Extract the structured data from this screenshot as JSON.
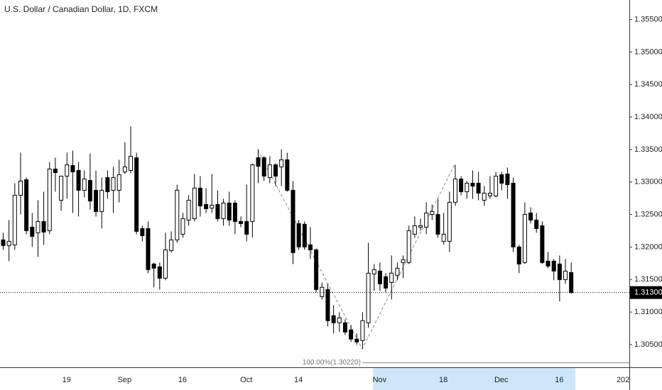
{
  "chart_data": {
    "type": "candlestick",
    "title": "U.S. Dollar / Canadian Dollar, 1D, FXCM",
    "categories": [
      null,
      null,
      null,
      null,
      null,
      null,
      null,
      null,
      null,
      null,
      null,
      "19",
      null,
      null,
      null,
      null,
      null,
      null,
      null,
      null,
      null,
      "Sep",
      null,
      null,
      null,
      null,
      null,
      null,
      null,
      null,
      null,
      "16",
      null,
      null,
      null,
      null,
      null,
      null,
      null,
      null,
      null,
      null,
      "Oct",
      null,
      null,
      null,
      null,
      null,
      null,
      null,
      null,
      "14",
      null,
      null,
      null,
      null,
      null,
      null,
      null,
      null,
      null,
      null,
      null,
      null,
      null,
      "Nov",
      null,
      null,
      null,
      null,
      null,
      null,
      null,
      null,
      null,
      null,
      "18",
      null,
      null,
      null,
      null,
      null,
      null,
      null,
      null,
      null,
      "Dec",
      null,
      null,
      null,
      null,
      null,
      null,
      null,
      null,
      null,
      "16",
      null,
      null,
      null,
      null,
      null,
      null,
      null,
      null,
      null,
      null,
      "202"
    ],
    "open": [
      1.3211,
      1.32023,
      1.32034,
      1.32797,
      1.33036,
      1.32306,
      1.32219,
      1.32393,
      1.32252,
      1.332,
      1.3272,
      1.33091,
      1.33254,
      1.33178,
      1.32873,
      1.33025,
      1.32873,
      1.32546,
      1.33069,
      1.32873,
      1.32873,
      1.33156,
      1.33178,
      1.33374,
      1.32284,
      1.32284,
      1.31739,
      1.31696,
      1.31521,
      1.31946,
      1.3211,
      1.32197,
      1.32415,
      1.32437,
      1.32906,
      1.32655,
      1.326,
      1.32655,
      1.32437,
      1.32677,
      1.32677,
      1.32393,
      1.32393,
      1.32393,
      1.33374,
      1.33374,
      1.33069,
      1.33265,
      1.33233,
      1.33342,
      1.32873,
      1.32361,
      1.3235,
      1.32034,
      1.31957,
      1.31238,
      1.31347,
      1.30944,
      1.30835,
      1.30835,
      1.30726,
      1.30584,
      1.30562,
      1.30835,
      1.31587,
      1.3163,
      1.31543,
      1.31456,
      1.31565,
      1.31761,
      1.31761,
      1.32197,
      1.32306,
      1.32306,
      1.32502,
      1.32502,
      1.32088,
      1.32088,
      1.32688,
      1.33047,
      1.32851,
      1.32982,
      1.32982,
      1.3272,
      1.32786,
      1.32786,
      1.33113,
      1.33124,
      1.32982,
      1.32001,
      1.31761,
      1.32524,
      1.32415,
      1.32328,
      1.31783,
      1.31783,
      1.31739,
      1.31499,
      1.31608,
      null,
      null,
      null,
      null,
      null,
      null,
      null,
      null,
      null
    ],
    "high": [
      1.32219,
      1.32415,
      1.32982,
      1.33451,
      1.33069,
      1.32524,
      1.3272,
      1.32851,
      1.33309,
      1.33374,
      1.33091,
      1.33451,
      1.33483,
      1.33309,
      1.33178,
      1.3344,
      1.33178,
      1.33069,
      1.33178,
      1.33233,
      1.33342,
      1.33614,
      1.33854,
      1.33451,
      1.32328,
      1.32393,
      1.31761,
      1.31761,
      1.32219,
      1.32241,
      1.3296,
      1.32524,
      1.32797,
      1.33124,
      1.33091,
      1.32906,
      1.33124,
      1.32873,
      1.32742,
      1.32851,
      1.3272,
      1.3247,
      1.3296,
      1.33287,
      1.33505,
      1.33396,
      1.33396,
      1.33287,
      1.33505,
      1.33451,
      1.33015,
      1.32415,
      1.32393,
      1.32306,
      1.31979,
      1.31456,
      1.31434,
      1.31107,
      1.30998,
      1.30889,
      1.30802,
      1.30671,
      1.30998,
      1.32066,
      1.31739,
      1.31761,
      1.31598,
      1.3187,
      1.31761,
      1.3187,
      1.32328,
      1.3247,
      1.32437,
      1.32688,
      1.32655,
      1.32742,
      1.32524,
      1.32851,
      1.33265,
      1.33091,
      1.33015,
      1.33178,
      1.33156,
      1.32938,
      1.33091,
      1.33156,
      1.33156,
      1.33222,
      1.33069,
      1.32034,
      1.32688,
      1.32611,
      1.32524,
      1.32393,
      1.31925,
      1.31816,
      1.3187,
      1.31816,
      1.31761,
      null,
      null,
      null,
      null,
      null,
      null,
      null,
      null,
      null
    ],
    "low": [
      1.31957,
      1.31783,
      1.31957,
      1.32502,
      1.32197,
      1.32001,
      1.31848,
      1.32034,
      1.32197,
      1.32851,
      1.32557,
      1.32742,
      1.32524,
      1.3247,
      1.32764,
      1.32579,
      1.3247,
      1.32284,
      1.32742,
      1.32524,
      1.32688,
      1.33124,
      1.33134,
      1.32197,
      1.32088,
      1.31598,
      1.3138,
      1.31347,
      1.31489,
      1.31914,
      1.32066,
      1.32143,
      1.32328,
      1.32393,
      1.3247,
      1.32524,
      1.32524,
      1.32393,
      1.32328,
      1.32328,
      1.32197,
      1.32306,
      1.32088,
      1.32143,
      1.32982,
      1.33015,
      1.32982,
      1.32938,
      1.32938,
      1.32851,
      1.31739,
      1.31957,
      1.31957,
      1.31816,
      1.31303,
      1.31194,
      1.3078,
      1.30671,
      1.30693,
      1.30649,
      1.3054,
      1.30497,
      1.30431,
      1.30758,
      1.31325,
      1.31325,
      1.31303,
      1.31194,
      1.31489,
      1.31521,
      1.31739,
      1.32143,
      1.32252,
      1.32197,
      1.32415,
      1.32143,
      1.32034,
      1.31925,
      1.32633,
      1.32797,
      1.32742,
      1.32742,
      1.3272,
      1.32633,
      1.32742,
      1.32764,
      1.32873,
      1.32742,
      1.31925,
      1.31598,
      1.31739,
      1.32361,
      1.32219,
      1.31739,
      1.31674,
      1.31489,
      1.31162,
      1.31434,
      1.31281,
      null,
      null,
      null,
      null,
      null,
      null,
      null,
      null,
      null
    ],
    "close": [
      1.32023,
      1.32088,
      1.32797,
      1.33015,
      1.32252,
      1.32164,
      1.32393,
      1.3223,
      1.332,
      1.33145,
      1.33091,
      1.33265,
      1.33156,
      1.32873,
      1.33047,
      1.32709,
      1.32546,
      1.32873,
      1.32851,
      1.33069,
      1.33113,
      1.33233,
      1.33396,
      1.32241,
      1.32175,
      1.31652,
      1.31674,
      1.31521,
      1.31957,
      1.3211,
      1.32873,
      1.32437,
      1.3272,
      1.32906,
      1.32633,
      1.32589,
      1.32644,
      1.32437,
      1.32677,
      1.32415,
      1.32393,
      1.32361,
      1.32197,
      1.33265,
      1.33243,
      1.33091,
      1.33265,
      1.33091,
      1.33342,
      1.32873,
      1.31914,
      1.32001,
      1.32001,
      1.31957,
      1.31347,
      1.3138,
      1.30867,
      1.30835,
      1.30911,
      1.30693,
      1.30584,
      1.3054,
      1.30867,
      1.31598,
      1.31652,
      1.31434,
      1.31369,
      1.31598,
      1.31674,
      1.31805,
      1.32252,
      1.32328,
      1.32328,
      1.32524,
      1.32546,
      1.32197,
      1.32197,
      1.32688,
      1.33047,
      1.32851,
      1.32982,
      1.32938,
      1.32829,
      1.32829,
      1.32829,
      1.33091,
      1.32982,
      1.3296,
      1.32001,
      1.31739,
      1.32502,
      1.32415,
      1.32284,
      1.31761,
      1.31707,
      1.3163,
      1.31499,
      1.3163,
      1.313,
      null,
      null,
      null,
      null,
      null,
      null,
      null,
      null,
      null
    ],
    "up_color": "#ffffff",
    "down_color": "#000000",
    "wick_color": "#000000",
    "ylim": [
      1.3015,
      1.358
    ],
    "yticks": [
      {
        "value": 1.305,
        "label": "1.30500"
      },
      {
        "value": 1.31,
        "label": "1.31000"
      },
      {
        "value": 1.315,
        "label": "1.31500"
      },
      {
        "value": 1.32,
        "label": "1.32000"
      },
      {
        "value": 1.325,
        "label": "1.32500"
      },
      {
        "value": 1.33,
        "label": "1.33000"
      },
      {
        "value": 1.335,
        "label": "1.33500"
      },
      {
        "value": 1.34,
        "label": "1.34000"
      },
      {
        "value": 1.345,
        "label": "1.34500"
      },
      {
        "value": 1.35,
        "label": "1.35000"
      },
      {
        "value": 1.355,
        "label": "1.35500"
      }
    ],
    "grid": false,
    "last_price": {
      "value": 1.313,
      "label": "1.31300"
    },
    "fib_level": {
      "value": 1.3022,
      "label": "100.00%(1.30220)"
    }
  }
}
